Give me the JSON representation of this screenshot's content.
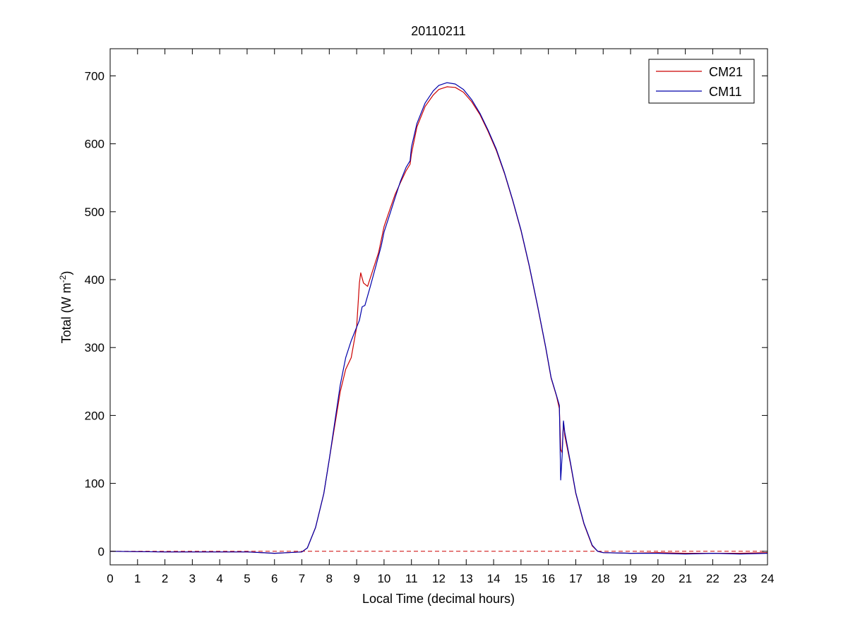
{
  "chart_data": {
    "type": "line",
    "title": "20110211",
    "xlabel": "Local Time (decimal hours)",
    "ylabel": {
      "main": "Total (W m",
      "sup": "-2",
      "close": ")"
    },
    "xlim": [
      0,
      24
    ],
    "ylim": [
      -20,
      740
    ],
    "xticks": [
      0,
      1,
      2,
      3,
      4,
      5,
      6,
      7,
      8,
      9,
      10,
      11,
      12,
      13,
      14,
      15,
      16,
      17,
      18,
      19,
      20,
      21,
      22,
      23,
      24
    ],
    "yticks": [
      0,
      100,
      200,
      300,
      400,
      500,
      600,
      700
    ],
    "grid": false,
    "legend_position": "top-right",
    "reference_line": {
      "y": 0,
      "color": "#cc0000",
      "style": "dashed"
    },
    "series": [
      {
        "name": "CM21",
        "color": "#cc0000",
        "points": [
          [
            0,
            0
          ],
          [
            2,
            -1
          ],
          [
            4,
            -1
          ],
          [
            5,
            -1
          ],
          [
            6,
            -3
          ],
          [
            6.5,
            -2
          ],
          [
            7,
            -1
          ],
          [
            7.2,
            5
          ],
          [
            7.5,
            35
          ],
          [
            7.8,
            85
          ],
          [
            8,
            135
          ],
          [
            8.2,
            185
          ],
          [
            8.4,
            235
          ],
          [
            8.6,
            268
          ],
          [
            8.8,
            285
          ],
          [
            9,
            330
          ],
          [
            9.1,
            395
          ],
          [
            9.15,
            410
          ],
          [
            9.25,
            395
          ],
          [
            9.4,
            390
          ],
          [
            9.6,
            415
          ],
          [
            9.8,
            440
          ],
          [
            10,
            478
          ],
          [
            10.2,
            502
          ],
          [
            10.4,
            525
          ],
          [
            10.6,
            543
          ],
          [
            10.8,
            560
          ],
          [
            10.95,
            570
          ],
          [
            11,
            585
          ],
          [
            11.2,
            625
          ],
          [
            11.5,
            655
          ],
          [
            11.8,
            672
          ],
          [
            12,
            680
          ],
          [
            12.3,
            684
          ],
          [
            12.6,
            683
          ],
          [
            12.9,
            676
          ],
          [
            13.2,
            662
          ],
          [
            13.5,
            643
          ],
          [
            13.8,
            618
          ],
          [
            14.1,
            590
          ],
          [
            14.4,
            556
          ],
          [
            14.7,
            516
          ],
          [
            15,
            472
          ],
          [
            15.3,
            420
          ],
          [
            15.6,
            362
          ],
          [
            15.9,
            300
          ],
          [
            16.1,
            255
          ],
          [
            16.3,
            228
          ],
          [
            16.4,
            210
          ],
          [
            16.45,
            150
          ],
          [
            16.5,
            145
          ],
          [
            16.55,
            190
          ],
          [
            16.6,
            170
          ],
          [
            16.8,
            130
          ],
          [
            17,
            85
          ],
          [
            17.3,
            40
          ],
          [
            17.6,
            8
          ],
          [
            17.8,
            0
          ],
          [
            18,
            -2
          ],
          [
            19,
            -3
          ],
          [
            20,
            -2
          ],
          [
            21,
            -3
          ],
          [
            22,
            -3
          ],
          [
            23,
            -3
          ],
          [
            24,
            -2
          ]
        ]
      },
      {
        "name": "CM11",
        "color": "#0000aa",
        "points": [
          [
            0,
            0
          ],
          [
            2,
            -1
          ],
          [
            4,
            -1
          ],
          [
            5,
            -1
          ],
          [
            6,
            -3
          ],
          [
            6.5,
            -2
          ],
          [
            7,
            -1
          ],
          [
            7.2,
            5
          ],
          [
            7.5,
            35
          ],
          [
            7.8,
            85
          ],
          [
            8,
            135
          ],
          [
            8.2,
            190
          ],
          [
            8.4,
            245
          ],
          [
            8.6,
            285
          ],
          [
            8.8,
            310
          ],
          [
            9,
            330
          ],
          [
            9.1,
            340
          ],
          [
            9.2,
            360
          ],
          [
            9.3,
            362
          ],
          [
            9.5,
            390
          ],
          [
            9.7,
            420
          ],
          [
            9.9,
            450
          ],
          [
            10,
            470
          ],
          [
            10.2,
            495
          ],
          [
            10.4,
            520
          ],
          [
            10.6,
            545
          ],
          [
            10.8,
            565
          ],
          [
            10.95,
            575
          ],
          [
            11,
            595
          ],
          [
            11.2,
            630
          ],
          [
            11.5,
            660
          ],
          [
            11.8,
            678
          ],
          [
            12,
            686
          ],
          [
            12.3,
            690
          ],
          [
            12.6,
            688
          ],
          [
            12.9,
            680
          ],
          [
            13.2,
            665
          ],
          [
            13.5,
            645
          ],
          [
            13.8,
            620
          ],
          [
            14.1,
            592
          ],
          [
            14.4,
            557
          ],
          [
            14.7,
            517
          ],
          [
            15,
            473
          ],
          [
            15.3,
            421
          ],
          [
            15.6,
            363
          ],
          [
            15.9,
            301
          ],
          [
            16.1,
            256
          ],
          [
            16.3,
            229
          ],
          [
            16.4,
            215
          ],
          [
            16.45,
            105
          ],
          [
            16.5,
            140
          ],
          [
            16.55,
            192
          ],
          [
            16.6,
            175
          ],
          [
            16.8,
            132
          ],
          [
            17,
            86
          ],
          [
            17.3,
            41
          ],
          [
            17.6,
            9
          ],
          [
            17.8,
            0
          ],
          [
            18,
            -2
          ],
          [
            19,
            -3
          ],
          [
            20,
            -3
          ],
          [
            21,
            -4
          ],
          [
            22,
            -3
          ],
          [
            23,
            -4
          ],
          [
            24,
            -3
          ]
        ]
      }
    ]
  }
}
